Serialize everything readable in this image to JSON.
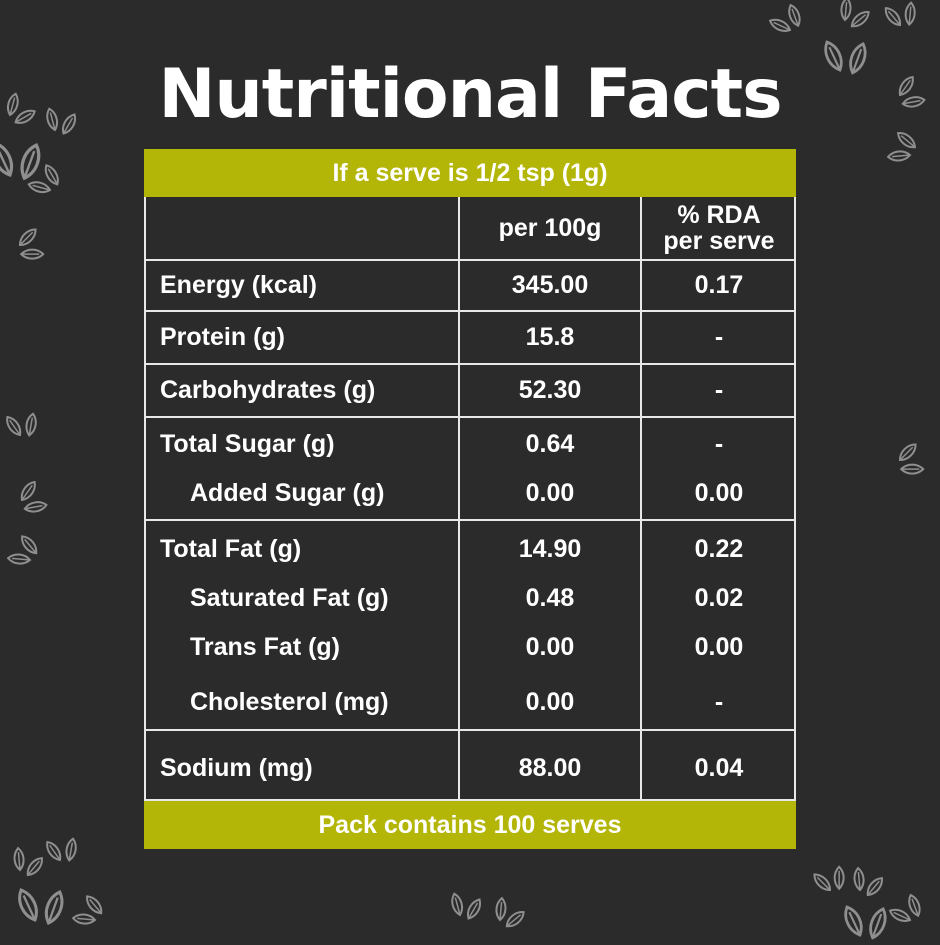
{
  "title": "Nutritional Facts",
  "serving_banner": "If a serve is 1/2 tsp (1g)",
  "columns": {
    "per100": "per 100g",
    "rda_line1": "% RDA",
    "rda_line2": "per serve"
  },
  "rows": [
    {
      "label": "Energy (kcal)",
      "per100": "345.00",
      "rda": "0.17"
    },
    {
      "label": "Protein (g)",
      "per100": "15.8",
      "rda": "-"
    },
    {
      "label": "Carbohydrates (g)",
      "per100": "52.30",
      "rda": "-"
    },
    {
      "label": "Total Sugar (g)",
      "per100": "0.64",
      "rda": "-"
    },
    {
      "label": "Added Sugar (g)",
      "per100": "0.00",
      "rda": "0.00"
    },
    {
      "label": "Total Fat (g)",
      "per100": "14.90",
      "rda": "0.22"
    },
    {
      "label": "Saturated Fat (g)",
      "per100": "0.48",
      "rda": "0.02"
    },
    {
      "label": "Trans Fat (g)",
      "per100": "0.00",
      "rda": "0.00"
    },
    {
      "label": "Cholesterol (mg)",
      "per100": "0.00",
      "rda": "-"
    },
    {
      "label": "Sodium (mg)",
      "per100": "88.00",
      "rda": "0.04"
    }
  ],
  "footer_banner": "Pack contains 100 serves",
  "colors": {
    "background": "#2b2b2b",
    "accent": "#b3b507",
    "text": "#ffffff",
    "decoration": "leaf-icon"
  }
}
